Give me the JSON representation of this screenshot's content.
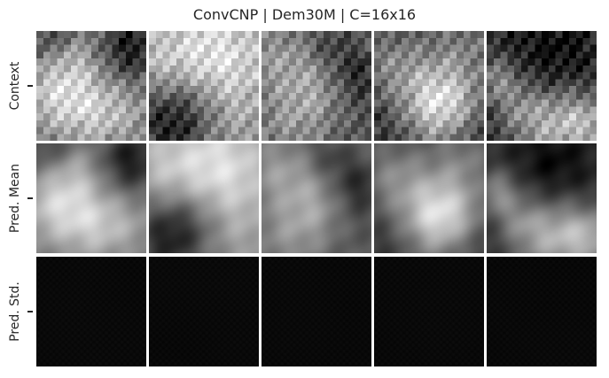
{
  "figure": {
    "title": "ConvCNP | Dem30M | C=16x16",
    "rows": [
      {
        "key": "context",
        "label": "Context"
      },
      {
        "key": "mean",
        "label": "Pred. Mean"
      },
      {
        "key": "std",
        "label": "Pred. Std."
      }
    ],
    "columns": 5,
    "colormap": "grayscale"
  }
}
